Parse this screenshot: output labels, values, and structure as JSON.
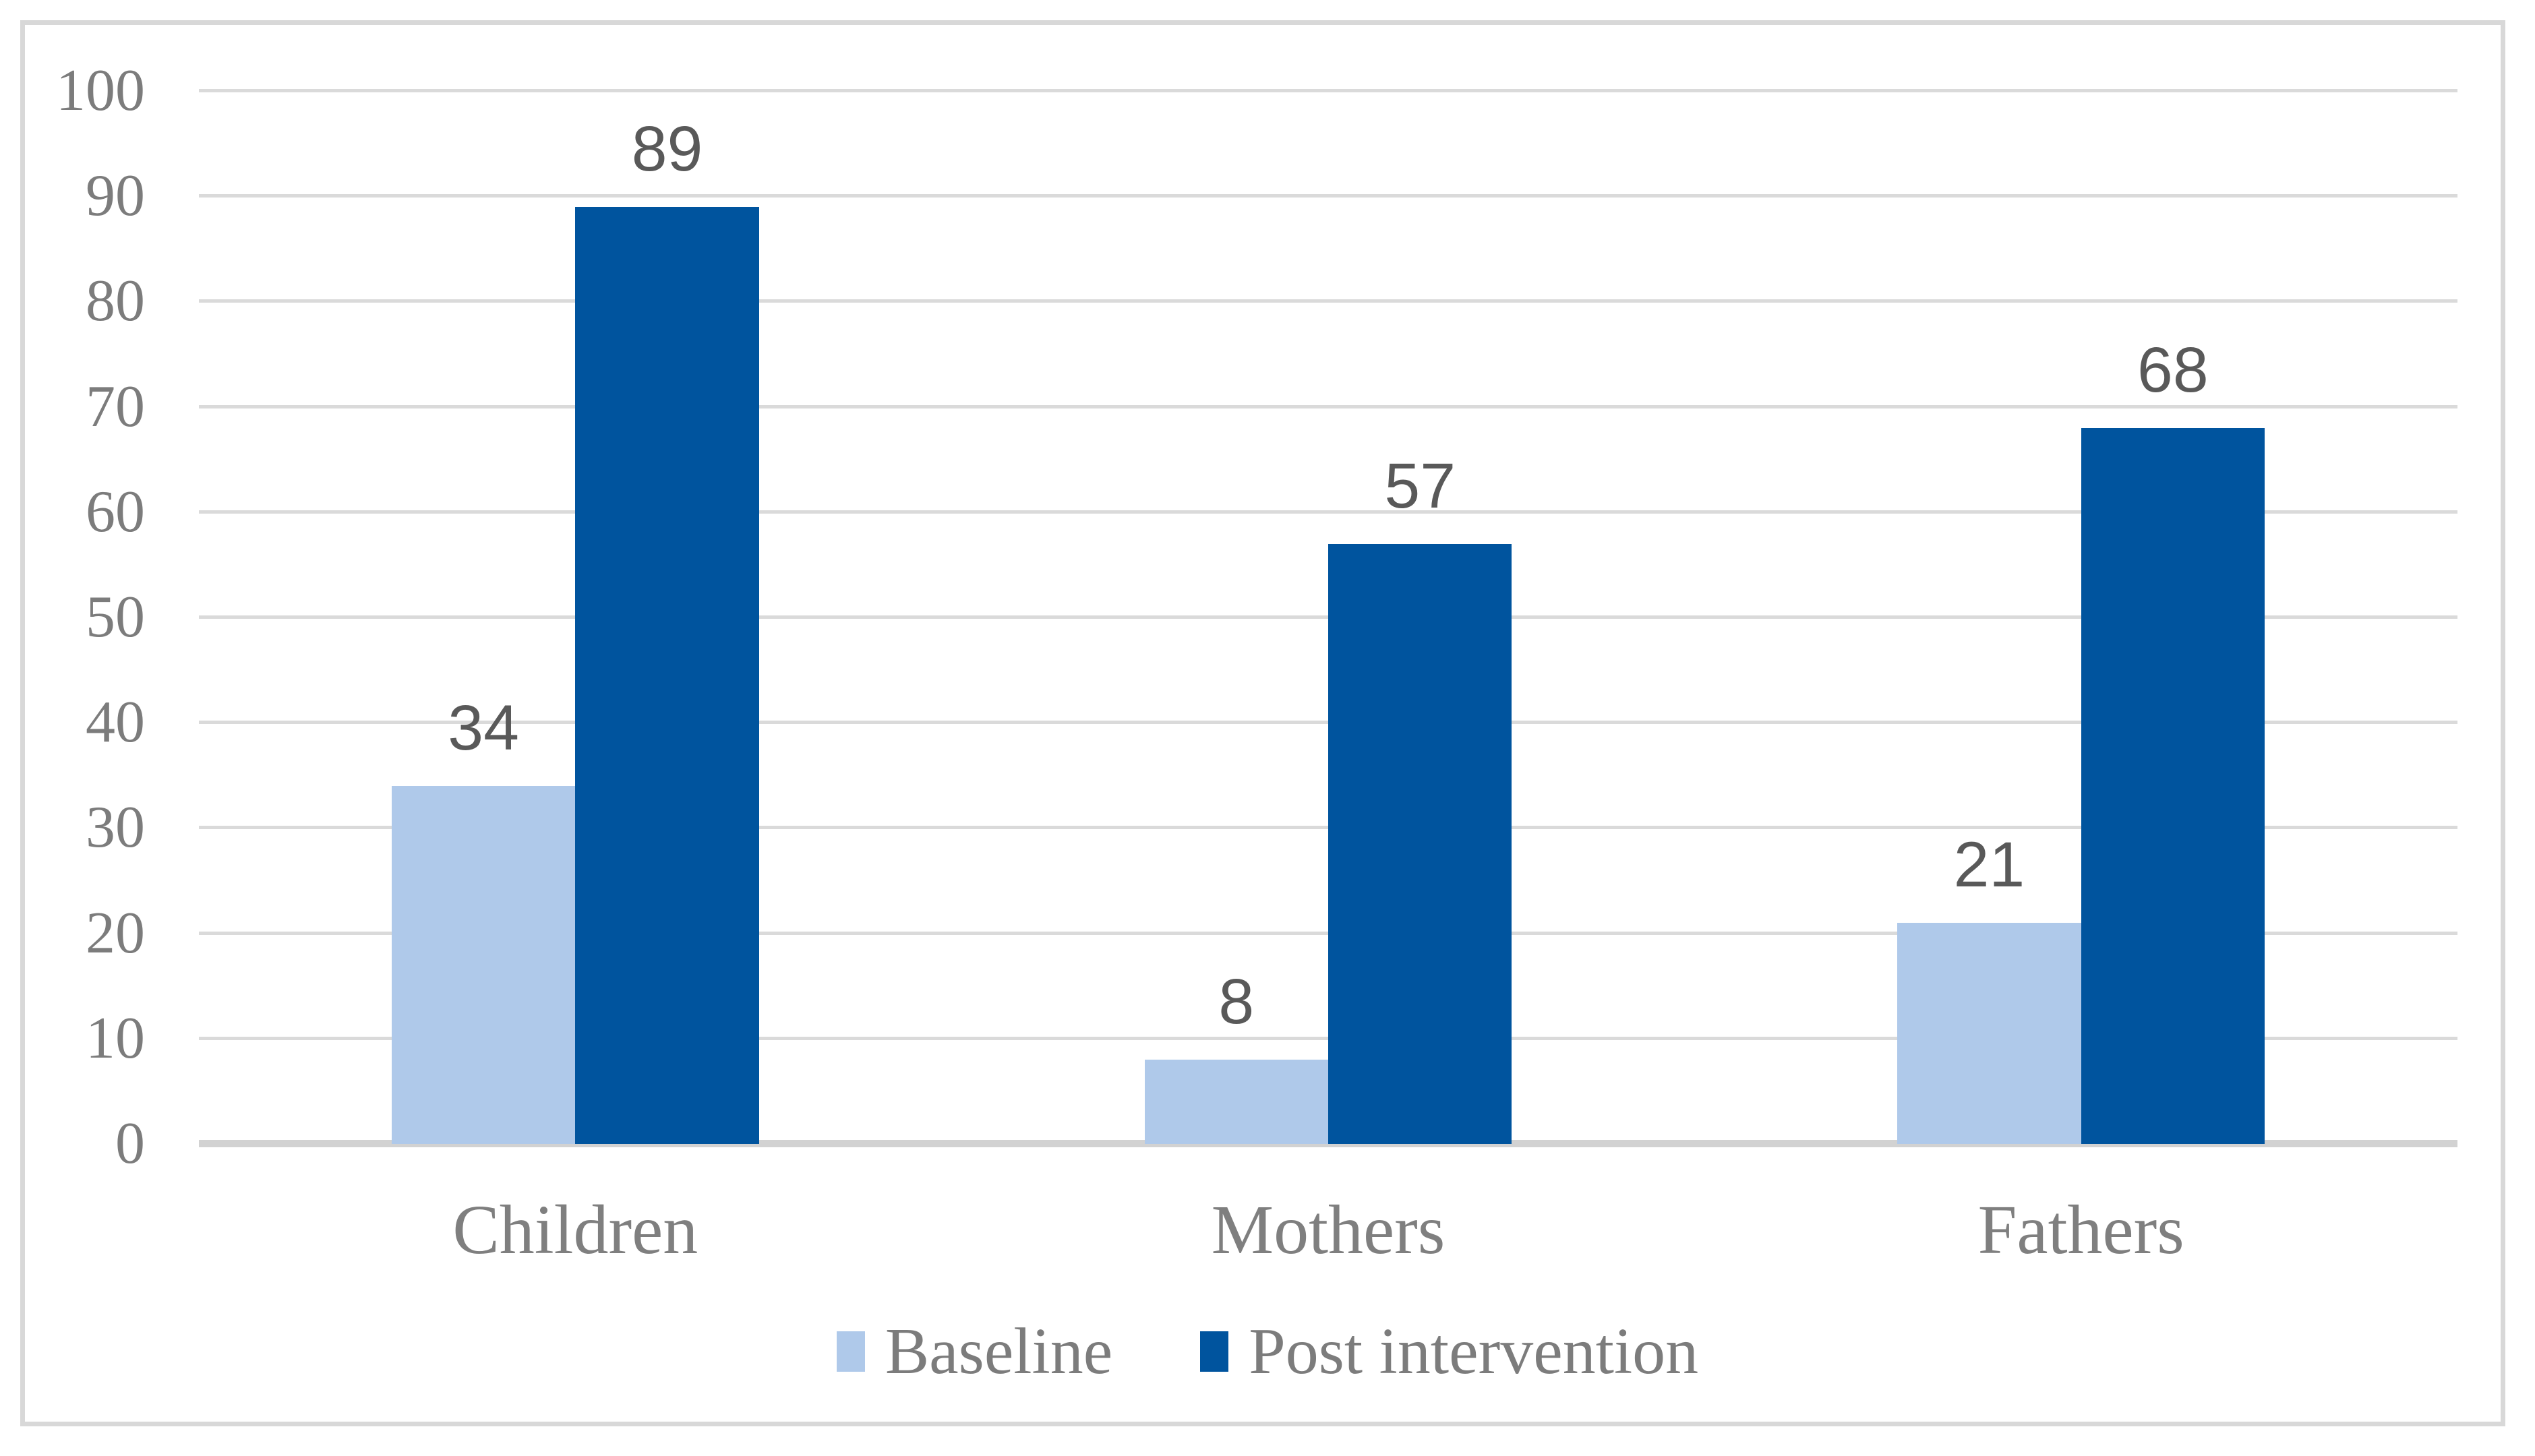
{
  "figure": {
    "background_color": "#ffffff",
    "frame_border_color": "#d8d8d8"
  },
  "chart_data": {
    "type": "bar",
    "title": "",
    "xlabel": "",
    "ylabel": "",
    "categories": [
      "Children",
      "Mothers",
      "Fathers"
    ],
    "series": [
      {
        "name": "Baseline",
        "color": "#afc9ea",
        "values": [
          34,
          8,
          21
        ]
      },
      {
        "name": "Post intervention",
        "color": "#00549e",
        "values": [
          89,
          57,
          68
        ]
      }
    ],
    "data_labels_shown": true,
    "data_label_color": "#595959",
    "ylim": [
      0,
      100
    ],
    "ytick_interval": 10,
    "ytick_labels": [
      "0",
      "10",
      "20",
      "30",
      "40",
      "50",
      "60",
      "70",
      "80",
      "90",
      "100"
    ],
    "tick_label_color": "#7c7c7c",
    "grid": true,
    "gridline_color": "#dadada",
    "axis_line_color": "#d2d2d2",
    "legend_position": "bottom"
  }
}
